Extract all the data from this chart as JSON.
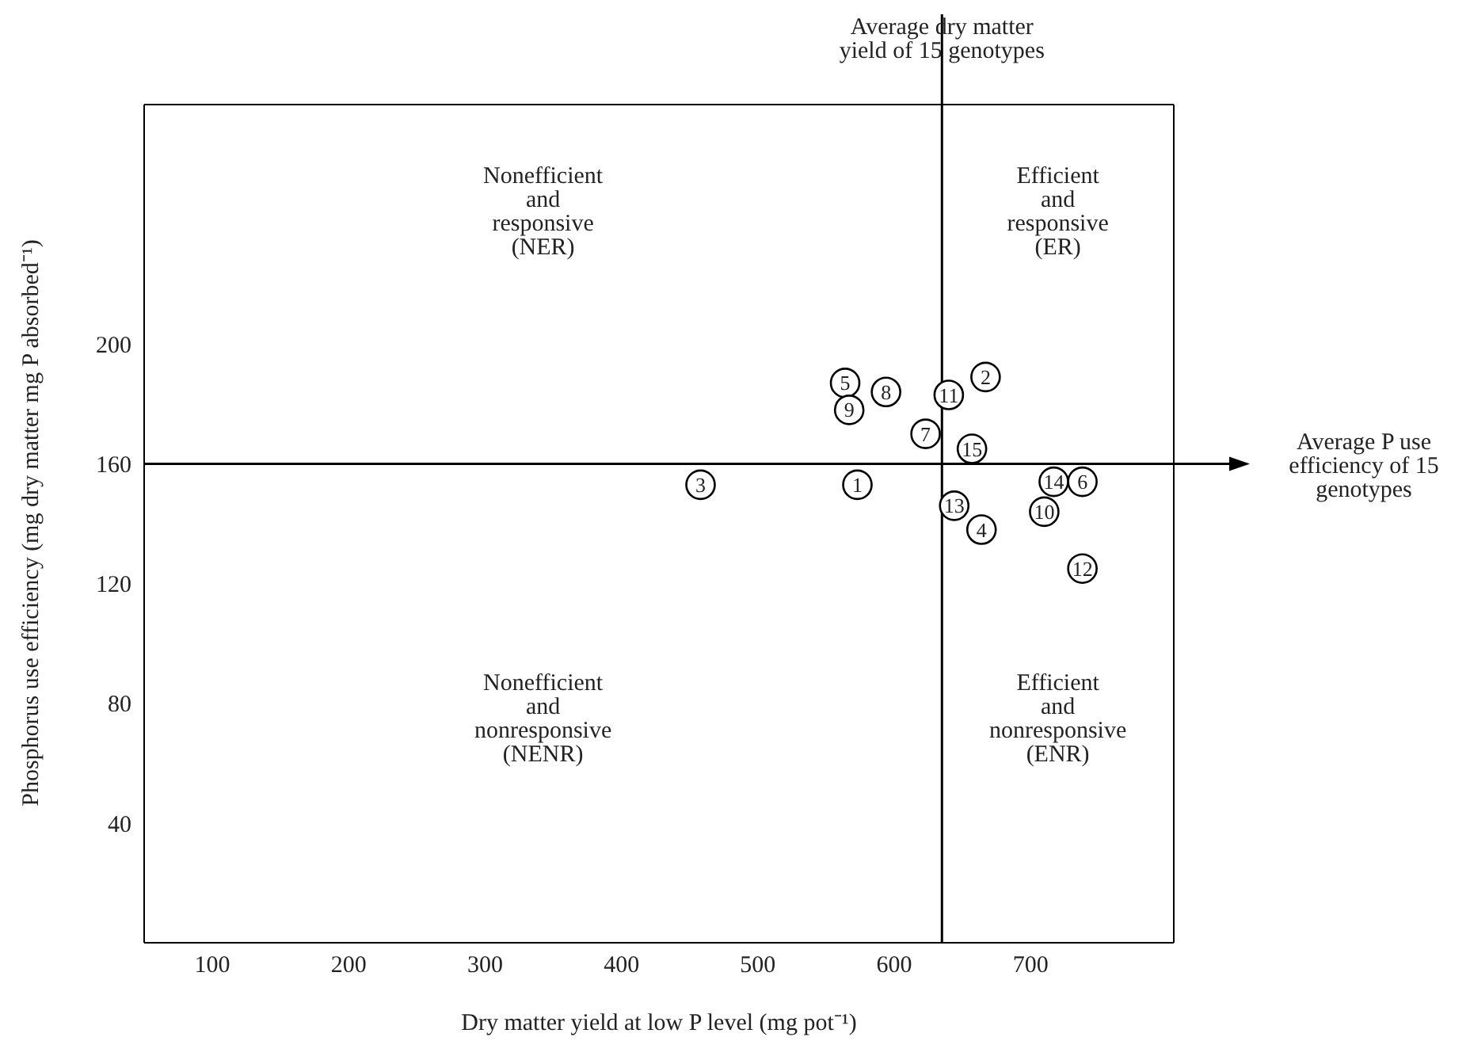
{
  "chart_data": {
    "type": "scatter",
    "xlabel": "Dry matter yield at low P level (mg pot⁻¹)",
    "ylabel": "Phosphorus use efficiency (mg dry matter mg P absorbed⁻¹)",
    "xlim": [
      50,
      805
    ],
    "xticks": [
      100,
      200,
      300,
      400,
      500,
      600,
      700
    ],
    "ylim": [
      0,
      280
    ],
    "yticks": [
      40,
      80,
      120,
      160,
      200
    ],
    "marker": "circle",
    "series": [
      {
        "name": "1",
        "color": "#000000",
        "x": [
          573
        ],
        "values": [
          153
        ]
      },
      {
        "name": "2",
        "color": "#000000",
        "x": [
          667
        ],
        "values": [
          189
        ]
      },
      {
        "name": "3",
        "color": "#000000",
        "x": [
          458
        ],
        "values": [
          153
        ]
      },
      {
        "name": "4",
        "color": "#000000",
        "x": [
          664
        ],
        "values": [
          138
        ]
      },
      {
        "name": "5",
        "color": "#000000",
        "x": [
          564
        ],
        "values": [
          187
        ]
      },
      {
        "name": "6",
        "color": "#000000",
        "x": [
          738
        ],
        "values": [
          154
        ]
      },
      {
        "name": "7",
        "color": "#000000",
        "x": [
          623
        ],
        "values": [
          170
        ]
      },
      {
        "name": "8",
        "color": "#000000",
        "x": [
          594
        ],
        "values": [
          184
        ]
      },
      {
        "name": "9",
        "color": "#000000",
        "x": [
          567
        ],
        "values": [
          178
        ]
      },
      {
        "name": "10",
        "color": "#000000",
        "x": [
          710
        ],
        "values": [
          144
        ]
      },
      {
        "name": "11",
        "color": "#000000",
        "x": [
          640
        ],
        "values": [
          183
        ]
      },
      {
        "name": "12",
        "color": "#000000",
        "x": [
          738
        ],
        "values": [
          125
        ]
      },
      {
        "name": "13",
        "color": "#000000",
        "x": [
          644
        ],
        "values": [
          146
        ]
      },
      {
        "name": "14",
        "color": "#000000",
        "x": [
          717
        ],
        "values": [
          154
        ]
      },
      {
        "name": "15",
        "color": "#000000",
        "x": [
          657
        ],
        "values": [
          165
        ]
      }
    ],
    "ref_lines": [
      {
        "axis": "x",
        "value": 635,
        "label": "Average dry matter yield of 15 genotypes",
        "color": "#000000"
      },
      {
        "axis": "y",
        "value": 160,
        "label": "Average P use efficiency of 15 genotypes",
        "color": "#000000"
      }
    ],
    "annotations": [
      "Nonefficient and responsive (NER)",
      "Efficient and responsive (ER)",
      "Nonefficient and nonresponsive (NENR)",
      "Efficient and nonresponsive (ENR)"
    ]
  }
}
